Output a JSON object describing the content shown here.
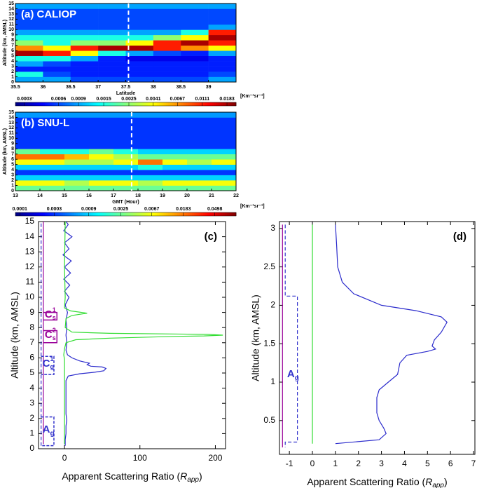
{
  "chart_data": [
    {
      "type": "heatmap",
      "title": "(a) CALIOP",
      "x_label": "Latitude",
      "y_label": "Altitude (km, AMSL)",
      "xlim": [
        35.5,
        39.5
      ],
      "ylim": [
        0,
        15
      ],
      "xticks": [
        35.5,
        36,
        36.5,
        37,
        37.5,
        38,
        38.5,
        39
      ],
      "yticks": [
        0,
        1,
        2,
        3,
        4,
        5,
        6,
        7,
        8,
        9,
        10,
        11,
        12,
        13,
        14,
        15
      ],
      "xbins": [
        35.5,
        36,
        36.5,
        37,
        37.5,
        38,
        38.5,
        39,
        39.5
      ],
      "ybins": [
        0,
        1,
        2,
        3,
        4,
        5,
        6,
        7,
        8,
        9,
        10,
        11,
        12,
        13,
        14,
        15
      ],
      "z": [
        [
          0.0009,
          0.0009,
          0.0006,
          0.0006,
          0.0006,
          0.0006,
          0.0006,
          0.0009
        ],
        [
          0.0015,
          0.0006,
          0.0005,
          0.0005,
          0.0005,
          0.0005,
          0.0005,
          0.0006
        ],
        [
          0.0005,
          0.0005,
          0.0005,
          0.0005,
          0.0005,
          0.0005,
          0.0005,
          0.0005
        ],
        [
          0.0009,
          0.0006,
          0.0005,
          0.0005,
          0.0005,
          0.0005,
          0.0005,
          0.0005
        ],
        [
          0.0015,
          0.0015,
          0.0009,
          0.0005,
          0.0004,
          0.0004,
          0.0004,
          0.0005
        ],
        [
          0.0183,
          0.0111,
          0.0041,
          0.0015,
          0.0009,
          0.0006,
          0.0005,
          0.0009
        ],
        [
          0.0067,
          0.0041,
          0.0111,
          0.0183,
          0.0183,
          0.0111,
          0.0067,
          0.0041
        ],
        [
          0.0025,
          0.0015,
          0.0025,
          0.0025,
          0.0041,
          0.0111,
          0.0183,
          0.0111
        ],
        [
          0.0015,
          0.0015,
          0.0015,
          0.0015,
          0.0015,
          0.0025,
          0.0041,
          0.0183
        ],
        [
          0.0009,
          0.0009,
          0.0009,
          0.0009,
          0.0009,
          0.0009,
          0.0015,
          0.0111
        ],
        [
          0.0006,
          0.0006,
          0.0006,
          0.0006,
          0.0006,
          0.0006,
          0.0006,
          0.0009
        ],
        [
          0.0006,
          0.0006,
          0.0006,
          0.0006,
          0.0006,
          0.0006,
          0.0006,
          0.0006
        ],
        [
          0.0006,
          0.0006,
          0.0006,
          0.0006,
          0.0006,
          0.0006,
          0.0006,
          0.0006
        ],
        [
          0.0006,
          0.0006,
          0.0006,
          0.0006,
          0.0006,
          0.0006,
          0.0006,
          0.0006
        ],
        [
          0.0009,
          0.0009,
          0.0009,
          0.0009,
          0.0009,
          0.0009,
          0.0009,
          0.0009
        ]
      ],
      "marker_x": 37.55,
      "colorbar": {
        "unit": "[Km⁻¹sr⁻¹]",
        "clim": [
          0.00025,
          0.022
        ],
        "log": true,
        "ticks": [
          0.0003,
          0.0006,
          0.0009,
          0.0015,
          0.0025,
          0.0041,
          0.0067,
          0.0111,
          0.0183
        ]
      }
    },
    {
      "type": "heatmap",
      "title": "(b) SNU-L",
      "x_label": "GMT (Hour)",
      "y_label": "Altitude (km, AMSL)",
      "xlim": [
        13,
        22
      ],
      "ylim": [
        0,
        15
      ],
      "xticks": [
        13,
        14,
        15,
        16,
        17,
        18,
        19,
        20,
        21,
        22
      ],
      "yticks": [
        0,
        1,
        2,
        3,
        4,
        5,
        6,
        7,
        8,
        9,
        10,
        11,
        12,
        13,
        14,
        15
      ],
      "xbins": [
        13,
        14,
        15,
        16,
        17,
        18,
        19,
        20,
        21,
        22
      ],
      "ybins": [
        0,
        1,
        2,
        3,
        4,
        5,
        6,
        7,
        8,
        9,
        10,
        11,
        12,
        13,
        14,
        15
      ],
      "z": [
        [
          0.0025,
          0.0025,
          0.0025,
          0.0025,
          0.0025,
          0.0025,
          0.0025,
          0.0025,
          0.0025
        ],
        [
          0.0067,
          0.0067,
          0.0041,
          0.0067,
          0.0067,
          0.0041,
          0.0067,
          0.0067,
          0.0067
        ],
        [
          0.0009,
          0.0009,
          0.0009,
          0.0009,
          0.0009,
          0.0009,
          0.0009,
          0.0009,
          0.0009
        ],
        [
          0.0003,
          0.0003,
          0.0003,
          0.0003,
          0.0003,
          0.0003,
          0.0003,
          0.0003,
          0.0003
        ],
        [
          0.0009,
          0.0009,
          0.0009,
          0.0009,
          0.0009,
          0.0015,
          0.0009,
          0.0009,
          0.0009
        ],
        [
          0.0067,
          0.0067,
          0.0041,
          0.0041,
          0.0067,
          0.0183,
          0.0067,
          0.0041,
          0.0067
        ],
        [
          0.0183,
          0.0183,
          0.0111,
          0.0067,
          0.0041,
          0.0025,
          0.0025,
          0.0025,
          0.0025
        ],
        [
          0.0025,
          0.0015,
          0.0015,
          0.0025,
          0.0015,
          0.0009,
          0.0009,
          0.0009,
          0.0009
        ],
        [
          0.0003,
          0.0003,
          0.0003,
          0.0003,
          0.0003,
          0.0003,
          0.0003,
          0.0003,
          0.0003
        ],
        [
          0.0003,
          0.0003,
          0.0003,
          0.0003,
          0.0003,
          0.0003,
          0.0003,
          0.0003,
          0.0003
        ],
        [
          0.0003,
          0.0003,
          0.0003,
          0.0003,
          0.0003,
          0.0003,
          0.0003,
          0.0003,
          0.0003
        ],
        [
          0.0003,
          0.0003,
          0.0003,
          0.0003,
          0.0003,
          0.0003,
          0.0003,
          0.0003,
          0.0003
        ],
        [
          0.0003,
          0.0003,
          0.0003,
          0.0003,
          0.0003,
          0.0003,
          0.0003,
          0.0003,
          0.0003
        ],
        [
          0.0003,
          0.0003,
          0.0003,
          0.0003,
          0.0003,
          0.0003,
          0.0003,
          0.0003,
          0.0003
        ],
        [
          0.0006,
          0.0006,
          0.0006,
          0.0006,
          0.0006,
          0.0006,
          0.0006,
          0.0006,
          0.0006
        ]
      ],
      "marker_x": 17.74,
      "colorbar": {
        "unit": "[Km⁻¹sr⁻¹]",
        "clim": [
          8.7e-05,
          0.098
        ],
        "log": true,
        "ticks": [
          0.0001,
          0.0003,
          0.0009,
          0.0025,
          0.0067,
          0.0183,
          0.0498
        ]
      }
    },
    {
      "type": "line",
      "title": "(c)",
      "y_label": "Altitude (km, AMSL)",
      "x_label": {
        "text": "Apparent Scattering Ratio (",
        "symbol": "R",
        "sub": "app",
        "close": ")"
      },
      "xlim": [
        -34.4,
        213.5
      ],
      "ylim": [
        0,
        15
      ],
      "xticks": [
        0,
        100,
        200
      ],
      "yticks": [
        0,
        1,
        2,
        3,
        4,
        5,
        6,
        7,
        8,
        9,
        10,
        11,
        12,
        13,
        14,
        15
      ],
      "series": [
        {
          "color": "#2b2bcc",
          "x": [
            1,
            1,
            2,
            2,
            3,
            2,
            2,
            2,
            2,
            5,
            20,
            40,
            52,
            55,
            50,
            35,
            30,
            33,
            20,
            10,
            4,
            2,
            3,
            2,
            3,
            2,
            4,
            1,
            6,
            0,
            7,
            -1,
            8,
            0,
            9,
            -2,
            6,
            0,
            10,
            -1,
            5,
            2
          ],
          "y": [
            0.2,
            0.6,
            1.0,
            1.5,
            1.9,
            2.3,
            3.0,
            3.8,
            4.5,
            4.8,
            4.95,
            5.05,
            5.15,
            5.3,
            5.4,
            5.45,
            5.55,
            5.65,
            5.8,
            6.0,
            6.2,
            6.5,
            7.0,
            7.5,
            8.0,
            8.5,
            9.0,
            9.5,
            10.0,
            10.4,
            10.8,
            11.2,
            11.6,
            12.0,
            12.4,
            12.8,
            13.2,
            13.6,
            14.0,
            14.4,
            14.8,
            15.0
          ]
        },
        {
          "color": "#33dd33",
          "x": [
            0,
            0,
            -1,
            0,
            2,
            15,
            60,
            150,
            185,
            210,
            190,
            60,
            10,
            1,
            2,
            10,
            30,
            8,
            0,
            1,
            0,
            1
          ],
          "y": [
            0.3,
            5.9,
            6.2,
            6.6,
            7.0,
            7.2,
            7.3,
            7.42,
            7.45,
            7.5,
            7.55,
            7.62,
            7.7,
            8.0,
            8.6,
            8.8,
            8.95,
            9.1,
            9.3,
            10,
            12,
            15
          ]
        },
        {
          "color": "#990099",
          "x": [
            -28,
            -28
          ],
          "y": [
            0.3,
            15
          ]
        },
        {
          "color": "#3333cc",
          "dashed": true,
          "x": [
            -31,
            -31
          ],
          "y": [
            0.2,
            15
          ]
        }
      ],
      "brackets": [
        {
          "label": "C",
          "sub": "s",
          "sup": "1",
          "ylim": [
            8.5,
            9.0
          ],
          "xlim": [
            -28,
            -10
          ],
          "color": "#990099"
        },
        {
          "label": "C",
          "sub": "s",
          "sup": "2",
          "ylim": [
            7.0,
            7.8
          ],
          "xlim": [
            -28,
            -10
          ],
          "color": "#990099"
        },
        {
          "label": "C",
          "sub": "g",
          "sup": "1",
          "ylim": [
            4.9,
            6.1
          ],
          "xlim": [
            -31,
            -14
          ],
          "color": "#3333cc",
          "dashed": true
        },
        {
          "label": "A",
          "sub": "g",
          "ylim": [
            0.2,
            2.1
          ],
          "xlim": [
            -31,
            -14
          ],
          "color": "#3333cc",
          "dashed": true
        }
      ]
    },
    {
      "type": "line",
      "title": "(d)",
      "y_label": "Altitude (km, AMSL)",
      "x_label": {
        "text": "Apparent Scattering Ratio (",
        "symbol": "R",
        "sub": "app",
        "close": ")"
      },
      "xlim": [
        -1.43,
        7.06
      ],
      "ylim": [
        0.06,
        3.09
      ],
      "xticks": [
        -1,
        0,
        1,
        2,
        3,
        4,
        5,
        6,
        7
      ],
      "yticks": [
        0.5,
        1,
        1.5,
        2,
        2.5,
        3
      ],
      "series": [
        {
          "color": "#2b2bcc",
          "x": [
            1,
            1.05,
            1.1,
            1.3,
            1.8,
            3,
            4.5,
            5.6,
            5.85,
            5.6,
            5.3,
            5.2,
            5.35,
            5,
            4.1,
            3.8,
            3.7,
            3.3,
            2.9,
            2.8,
            2.8,
            2.9,
            3.1,
            3.2,
            2.9,
            1
          ],
          "y": [
            3.05,
            2.8,
            2.5,
            2.3,
            2.15,
            2.0,
            1.93,
            1.85,
            1.78,
            1.65,
            1.55,
            1.47,
            1.43,
            1.4,
            1.35,
            1.25,
            1.1,
            1.0,
            0.9,
            0.8,
            0.6,
            0.5,
            0.4,
            0.33,
            0.25,
            0.2
          ]
        },
        {
          "color": "#33dd33",
          "x": [
            0,
            0
          ],
          "y": [
            0.2,
            3.05
          ]
        },
        {
          "color": "#990099",
          "x": [
            -1.3,
            -1.3
          ],
          "y": [
            0.15,
            3.05
          ]
        },
        {
          "color": "#3333cc",
          "dashed": true,
          "x": [
            -1.18,
            -1.18,
            -0.65,
            -0.65,
            -1.18,
            -1.18
          ],
          "y": [
            3.05,
            2.12,
            2.12,
            0.22,
            0.22,
            0.15
          ]
        }
      ],
      "labels": [
        {
          "label": "A",
          "sub": "g",
          "x": -1.1,
          "y": 1.1,
          "color": "#3333cc"
        }
      ]
    }
  ]
}
